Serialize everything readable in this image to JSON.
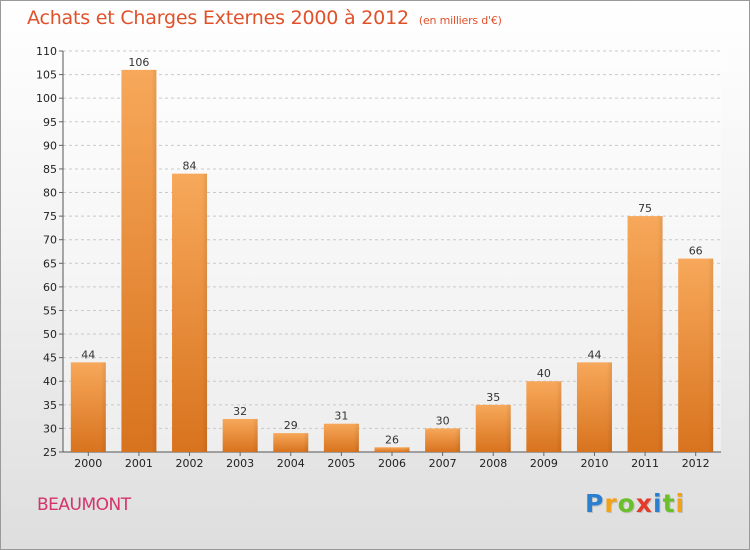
{
  "header": {
    "title": "Achats et Charges Externes 2000 à 2012",
    "subtitle": "(en milliers d'€)"
  },
  "footer": {
    "city": "BEAUMONT",
    "logo_letters": [
      {
        "ch": "P",
        "color": "#2a7fd0"
      },
      {
        "ch": "r",
        "color": "#f2a218"
      },
      {
        "ch": "o",
        "color": "#6bbf2a"
      },
      {
        "ch": "x",
        "color": "#e23b2a"
      },
      {
        "ch": "i",
        "color": "#2a7fd0"
      },
      {
        "ch": "t",
        "color": "#6bbf2a"
      },
      {
        "ch": "i",
        "color": "#f2a218"
      }
    ]
  },
  "colors": {
    "bar_top": "#f7a85a",
    "bar_bottom": "#d8731e",
    "grid": "#c9c9c9",
    "title": "#e0512a",
    "city": "#d4336b"
  },
  "chart_data": {
    "type": "bar",
    "title": "Achats et Charges Externes 2000 à 2012",
    "subtitle": "(en milliers d'€)",
    "xlabel": "",
    "ylabel": "",
    "categories": [
      "2000",
      "2001",
      "2002",
      "2003",
      "2004",
      "2005",
      "2006",
      "2007",
      "2008",
      "2009",
      "2010",
      "2011",
      "2012"
    ],
    "values": [
      44,
      106,
      84,
      32,
      29,
      31,
      26,
      30,
      35,
      40,
      44,
      75,
      66
    ],
    "ylim": [
      25,
      110
    ],
    "yticks": [
      25,
      30,
      35,
      40,
      45,
      50,
      55,
      60,
      65,
      70,
      75,
      80,
      85,
      90,
      95,
      100,
      105,
      110
    ],
    "grid": true,
    "data_labels": true
  }
}
